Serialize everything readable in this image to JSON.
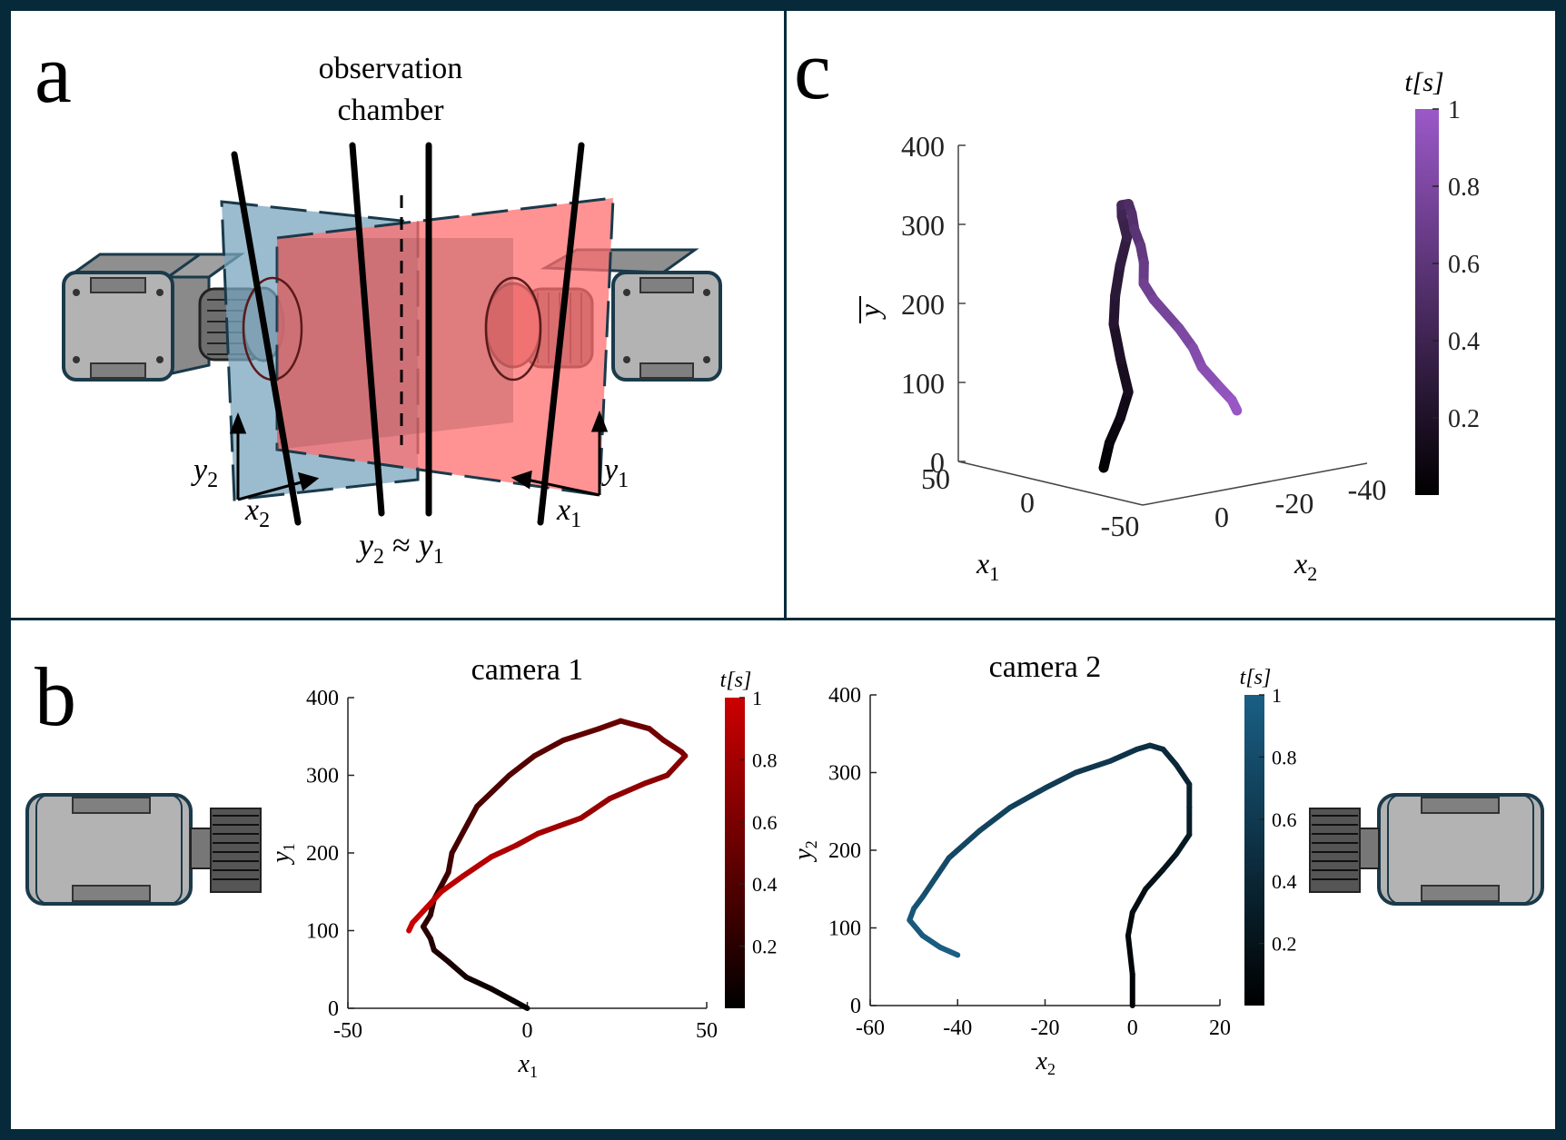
{
  "panels": {
    "a": {
      "letter": "a",
      "chamber_label_line1": "observation",
      "chamber_label_line2": "chamber",
      "axis_y2": "y",
      "axis_y2_sub": "2",
      "axis_x2": "x",
      "axis_x2_sub": "2",
      "axis_y1": "y",
      "axis_y1_sub": "1",
      "axis_x1": "x",
      "axis_x1_sub": "1",
      "relation_left": "y",
      "relation_left_sub": "2",
      "relation_op": " ≈ ",
      "relation_right": "y",
      "relation_right_sub": "1"
    },
    "b": {
      "letter": "b"
    },
    "c": {
      "letter": "c",
      "ylabel": "y",
      "xlabel1": "x",
      "xlabel1_sub": "1",
      "xlabel2": "x",
      "xlabel2_sub": "2",
      "y_ticks": [
        "0",
        "100",
        "200",
        "300",
        "400"
      ],
      "x1_ticks": [
        "50",
        "0",
        "-50"
      ],
      "x2_ticks": [
        "0",
        "-20",
        "-40"
      ],
      "colorbar_title": "t[s]",
      "colorbar_ticks": [
        "0.2",
        "0.4",
        "0.6",
        "0.8",
        "1"
      ]
    }
  },
  "colors": {
    "frame": "#062a3a",
    "camera_fill": "#b3b3b3",
    "camera_stroke": "#1a3a4a",
    "plane_blue": "#7aa6bd",
    "plane_red": "#ff6f6f",
    "cam1_colormap_end": "#cc0000",
    "cam2_colormap_end": "#1a5f85",
    "c_colormap_end": "#9b59c9"
  },
  "chart_data": [
    {
      "type": "line",
      "title": "camera 1",
      "xlabel": "x",
      "xlabel_sub": "1",
      "ylabel": "y",
      "ylabel_sub": "1",
      "xlim": [
        -50,
        50
      ],
      "ylim": [
        0,
        400
      ],
      "x_ticks": [
        "-50",
        "0",
        "50"
      ],
      "y_ticks": [
        "0",
        "100",
        "200",
        "300",
        "400"
      ],
      "colorbar_title": "t[s]",
      "colorbar_ticks": [
        "0.2",
        "0.4",
        "0.6",
        "0.8",
        "1"
      ],
      "grid": false,
      "x": [
        0,
        -4,
        -10,
        -17,
        -22,
        -26,
        -27,
        -29,
        -27,
        -26,
        -22,
        -21,
        -14,
        -5,
        2,
        10,
        20,
        26,
        34,
        38,
        43,
        44,
        39,
        33,
        23,
        15,
        9,
        3,
        -3,
        -10,
        -18,
        -24,
        -28,
        -32,
        -33
      ],
      "y": [
        0,
        10,
        25,
        40,
        60,
        75,
        90,
        105,
        120,
        140,
        175,
        200,
        260,
        300,
        325,
        345,
        360,
        370,
        360,
        345,
        330,
        325,
        300,
        290,
        270,
        245,
        235,
        225,
        210,
        195,
        170,
        150,
        130,
        110,
        100
      ],
      "t": [
        0,
        0.03,
        0.06,
        0.09,
        0.12,
        0.15,
        0.18,
        0.21,
        0.24,
        0.27,
        0.3,
        0.33,
        0.36,
        0.39,
        0.42,
        0.45,
        0.48,
        0.51,
        0.54,
        0.57,
        0.6,
        0.63,
        0.66,
        0.69,
        0.72,
        0.75,
        0.78,
        0.81,
        0.84,
        0.87,
        0.9,
        0.93,
        0.96,
        0.98,
        1.0
      ]
    },
    {
      "type": "line",
      "title": "camera 2",
      "xlabel": "x",
      "xlabel_sub": "2",
      "ylabel": "y",
      "ylabel_sub": "2",
      "xlim": [
        -60,
        20
      ],
      "ylim": [
        0,
        400
      ],
      "x_ticks": [
        "-60",
        "-40",
        "-20",
        "0",
        "20"
      ],
      "y_ticks": [
        "0",
        "100",
        "200",
        "300",
        "400"
      ],
      "colorbar_title": "t[s]",
      "colorbar_ticks": [
        "0.2",
        "0.4",
        "0.6",
        "0.8",
        "1"
      ],
      "grid": false,
      "x": [
        0,
        0,
        -1,
        0,
        3,
        7,
        10,
        13,
        13,
        13,
        10,
        7,
        4,
        1,
        -5,
        -13,
        -20,
        -28,
        -35,
        -42,
        -45,
        -48,
        -50,
        -51,
        -48,
        -44,
        -40
      ],
      "y": [
        0,
        40,
        90,
        120,
        150,
        175,
        195,
        220,
        255,
        285,
        310,
        330,
        335,
        330,
        315,
        300,
        280,
        255,
        225,
        190,
        165,
        140,
        125,
        110,
        90,
        75,
        65
      ],
      "t": [
        0,
        0.04,
        0.08,
        0.12,
        0.16,
        0.2,
        0.24,
        0.28,
        0.32,
        0.36,
        0.4,
        0.44,
        0.48,
        0.52,
        0.56,
        0.6,
        0.64,
        0.68,
        0.72,
        0.76,
        0.8,
        0.84,
        0.88,
        0.92,
        0.95,
        0.98,
        1.0
      ]
    },
    {
      "type": "line",
      "title": "",
      "xlabel": "x",
      "xlabel_sub": "1",
      "ylabel": "y",
      "zlabel": "x",
      "zlabel_sub": "2",
      "note": "3D trajectory with axes x1, x2 and mean y",
      "xlim": [
        -50,
        50
      ],
      "zlim": [
        -40,
        20
      ],
      "ylim": [
        0,
        400
      ],
      "x1": [
        0,
        -4,
        -10,
        -17,
        -22,
        -26,
        -27,
        -26,
        -22,
        -14,
        -5,
        2,
        10,
        20,
        26,
        34,
        43,
        39,
        23,
        9,
        -3,
        -18,
        -28,
        -33
      ],
      "x2": [
        0,
        0,
        -1,
        0,
        7,
        13,
        13,
        10,
        4,
        1,
        -5,
        -13,
        -20,
        -28,
        -35,
        -42,
        -48,
        -50,
        -51,
        -48,
        -44,
        -42,
        -41,
        -40
      ],
      "y": [
        0,
        30,
        60,
        90,
        125,
        165,
        200,
        240,
        280,
        310,
        330,
        338,
        332,
        320,
        305,
        290,
        270,
        250,
        210,
        180,
        150,
        120,
        100,
        85
      ],
      "t": [
        0,
        0.04,
        0.09,
        0.13,
        0.17,
        0.22,
        0.26,
        0.3,
        0.35,
        0.39,
        0.43,
        0.48,
        0.52,
        0.56,
        0.61,
        0.65,
        0.7,
        0.74,
        0.78,
        0.83,
        0.87,
        0.91,
        0.96,
        1.0
      ]
    }
  ]
}
